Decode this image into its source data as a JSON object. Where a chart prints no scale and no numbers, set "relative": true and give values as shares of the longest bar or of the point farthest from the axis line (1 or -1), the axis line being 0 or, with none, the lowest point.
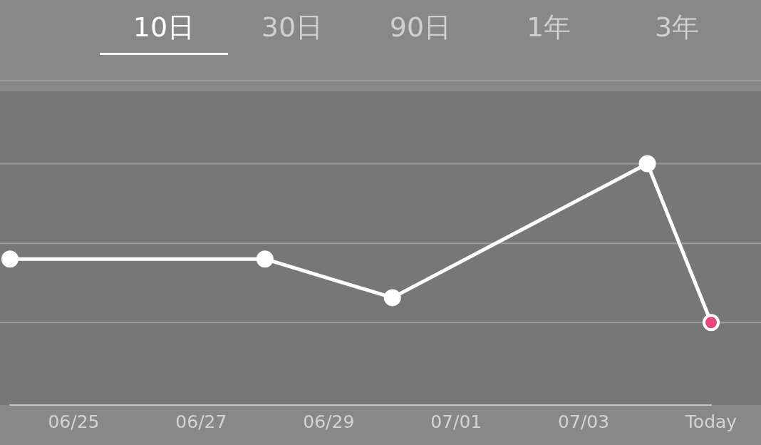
{
  "chart_data": {
    "type": "line",
    "relative": true,
    "marker": "circle",
    "line_style": "solid",
    "ref_lines": [
      {
        "axis": "y",
        "value": 0.342,
        "color": "#9c9c9c"
      },
      {
        "axis": "y",
        "value": 0.67,
        "color": "#9c9c9c"
      },
      {
        "axis": "y",
        "value": 1,
        "color": "#9c9c9c"
      }
    ],
    "annotations": [
      "10日",
      "30日",
      "90日",
      "1年",
      "3年"
    ],
    "categories": [
      null,
      "06/25",
      null,
      "06/27",
      null,
      "06/29",
      null,
      "07/01",
      null,
      "07/03",
      null,
      "Today"
    ],
    "series": [
      {
        "color": "#ffffff",
        "colors": [
          "#ffffff",
          null,
          null,
          null,
          "#ffffff",
          null,
          "#ffffff",
          null,
          null,
          null,
          "#ffffff",
          "#e8457a"
        ],
        "values": [
          0.605,
          null,
          null,
          null,
          0.605,
          null,
          0.445,
          null,
          null,
          null,
          1,
          0.342
        ]
      }
    ]
  }
}
